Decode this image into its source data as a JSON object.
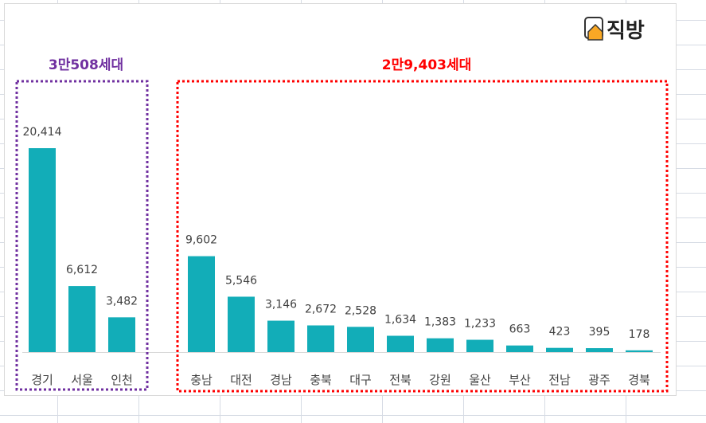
{
  "logo": {
    "text": "직방"
  },
  "chart_data": {
    "type": "bar",
    "categories": [
      "경기",
      "서울",
      "인천",
      "충남",
      "대전",
      "경남",
      "충북",
      "대구",
      "전북",
      "강원",
      "울산",
      "부산",
      "전남",
      "광주",
      "경북"
    ],
    "values": [
      20414,
      6612,
      3482,
      9602,
      5546,
      3146,
      2672,
      2528,
      1634,
      1383,
      1233,
      663,
      423,
      395,
      178
    ],
    "data_labels": [
      "20,414",
      "6,612",
      "3,482",
      "9,602",
      "5,546",
      "3,146",
      "2,672",
      "2,528",
      "1,634",
      "1,383",
      "1,233",
      "663",
      "423",
      "395",
      "178"
    ],
    "groups": [
      {
        "label": "3만508세대",
        "members": [
          "경기",
          "서울",
          "인천"
        ],
        "color": "#7030a0"
      },
      {
        "label": "2만9,403세대",
        "members": [
          "충남",
          "대전",
          "경남",
          "충북",
          "대구",
          "전북",
          "강원",
          "울산",
          "부산",
          "전남",
          "광주",
          "경북"
        ],
        "color": "#ff0000"
      }
    ],
    "bar_color": "#12adb8",
    "ylim": [
      0,
      20414
    ],
    "grid": false,
    "title": "",
    "xlabel": "",
    "ylabel": ""
  }
}
